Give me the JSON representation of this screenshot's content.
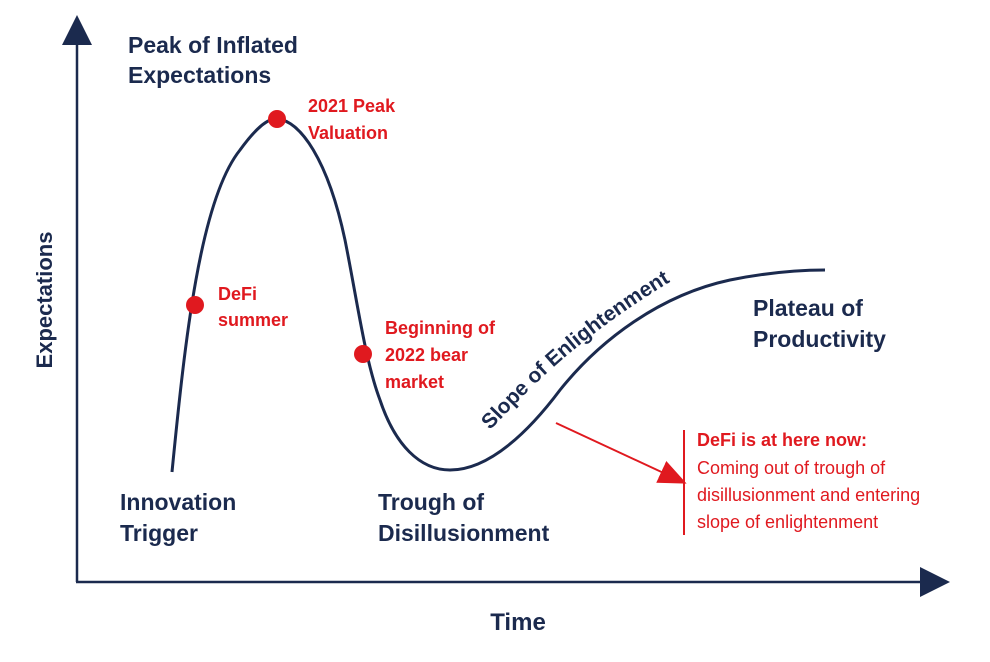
{
  "axes": {
    "x_label": "Time",
    "y_label": "Expectations"
  },
  "phases": {
    "innovation_trigger": [
      "Innovation",
      "Trigger"
    ],
    "peak": [
      "Peak of Inflated",
      "Expectations"
    ],
    "trough": [
      "Trough of",
      "Disillusionment"
    ],
    "slope": "Slope of Enlightenment",
    "plateau": [
      "Plateau of",
      "Productivity"
    ]
  },
  "markers": {
    "defi_summer": [
      "DeFi",
      "summer"
    ],
    "peak_2021": [
      "2021 Peak",
      "Valuation"
    ],
    "bear_2022": [
      "Beginning of",
      "2022 bear",
      "market"
    ]
  },
  "callout": {
    "title": "DeFi is at here now:",
    "lines": [
      "Coming out of trough of",
      "disillusionment and entering",
      "slope of enlightenment"
    ]
  },
  "colors": {
    "curve": "#1b2a4e",
    "highlight": "#e0191f",
    "axis": "#1b2a4e"
  }
}
